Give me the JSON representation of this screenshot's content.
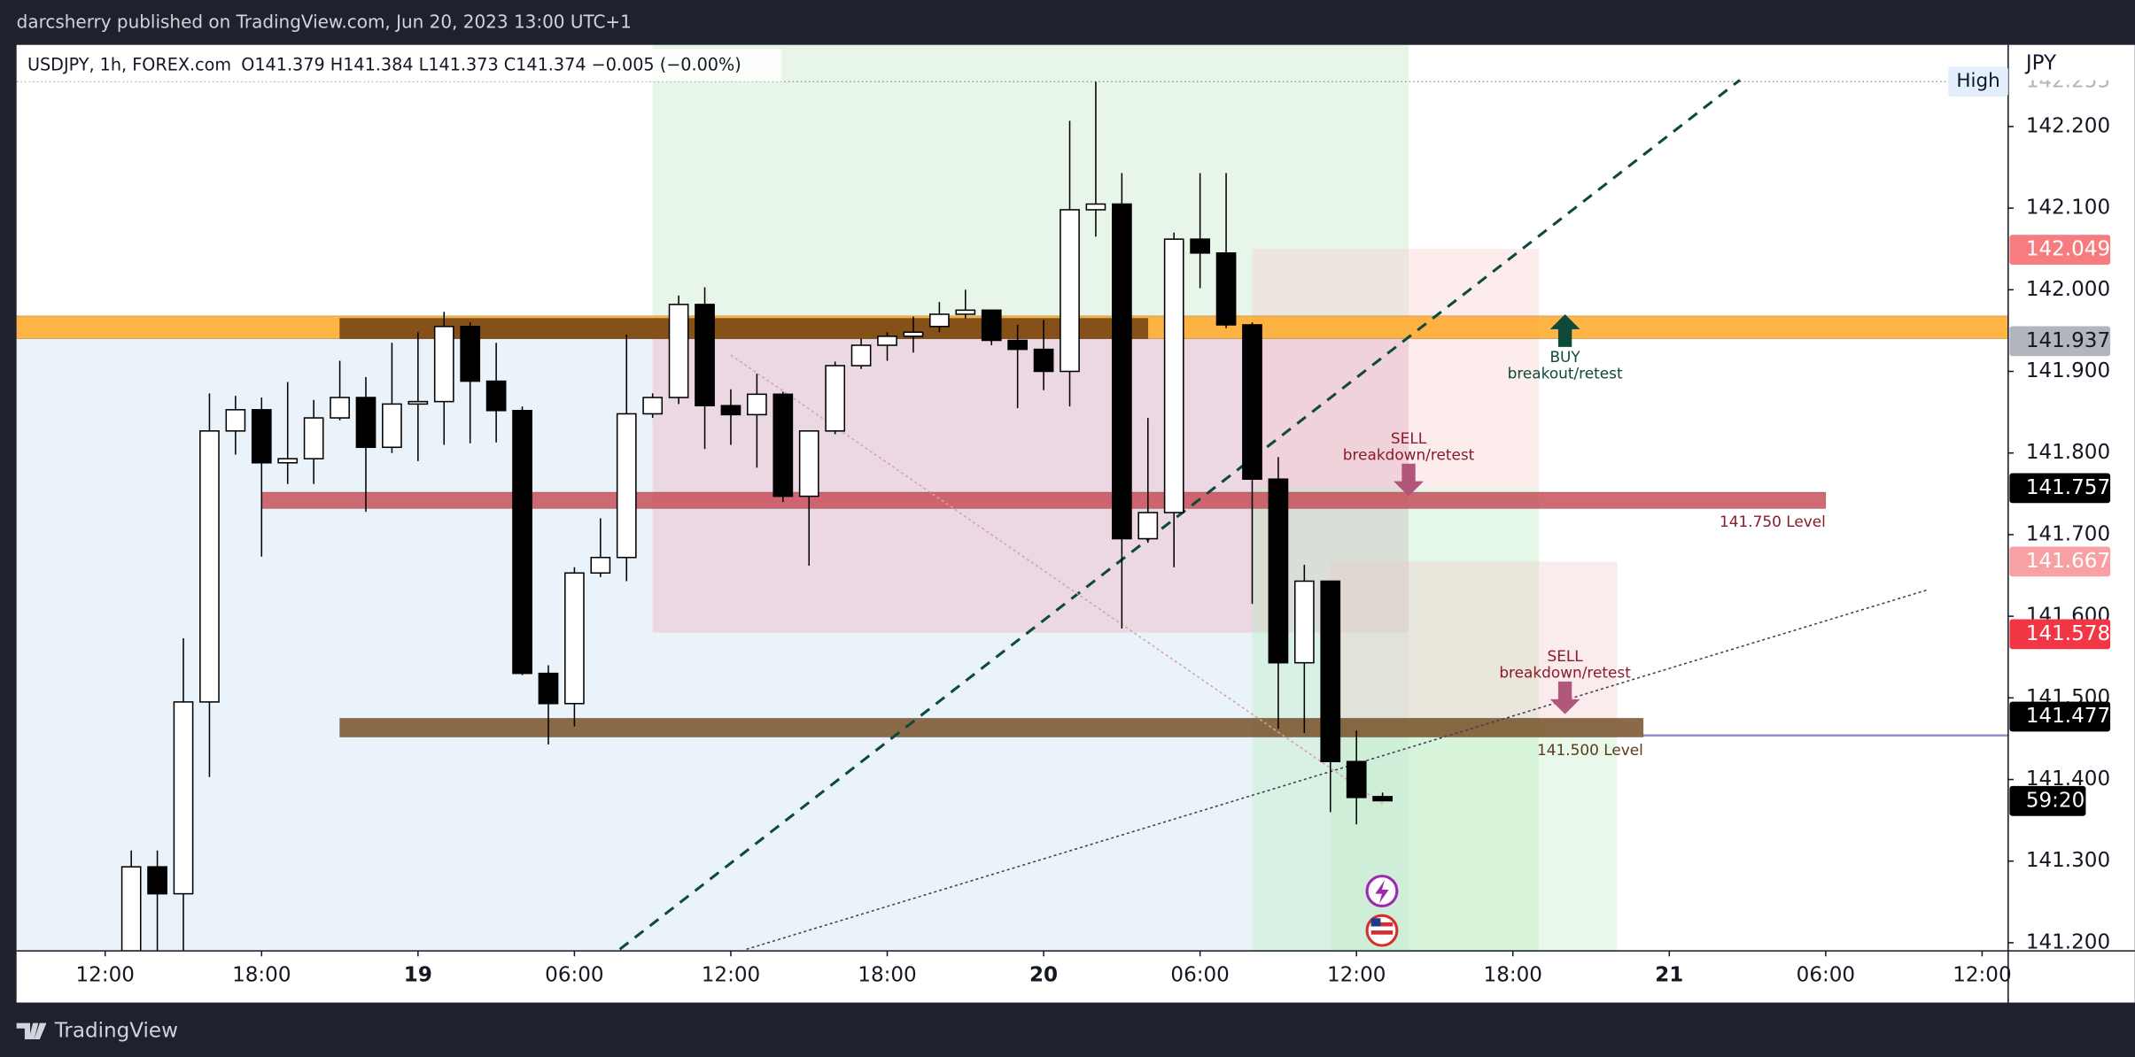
{
  "header": {
    "publisher": "darcsherry published on TradingView.com, Jun 20, 2023 13:00 UTC+1"
  },
  "footer": {
    "brand": "TradingView"
  },
  "chart_data": {
    "type": "candlestick",
    "symbol": "USDJPY, 1h, FOREX.com",
    "ohlc_legend": "O141.379  H141.384  L141.373  C141.374  −0.005 (−0.00%)",
    "currency": "JPY",
    "countdown": "59:20",
    "up_color": "#ffffff",
    "down_color": "#000000",
    "wick_color": "#000000",
    "grid": false,
    "xlim": [
      8.6,
      85
    ],
    "xticks": [
      {
        "value": 12,
        "label": "12:00"
      },
      {
        "value": 18,
        "label": "18:00"
      },
      {
        "value": 24,
        "label": "19"
      },
      {
        "value": 30,
        "label": "06:00"
      },
      {
        "value": 36,
        "label": "12:00"
      },
      {
        "value": 42,
        "label": "18:00"
      },
      {
        "value": 48,
        "label": "20"
      },
      {
        "value": 54,
        "label": "06:00"
      },
      {
        "value": 60,
        "label": "12:00"
      },
      {
        "value": 66,
        "label": "18:00"
      },
      {
        "value": 72,
        "label": "21"
      },
      {
        "value": 78,
        "label": "06:00"
      },
      {
        "value": 84,
        "label": "12:00"
      }
    ],
    "ylim": [
      141.19,
      142.3
    ],
    "yticks": [
      {
        "value": 141.2,
        "label": "141.200"
      },
      {
        "value": 141.3,
        "label": "141.300"
      },
      {
        "value": 141.4,
        "label": "141.400"
      },
      {
        "value": 141.5,
        "label": "141.500"
      },
      {
        "value": 141.6,
        "label": "141.600"
      },
      {
        "value": 141.7,
        "label": "141.700"
      },
      {
        "value": 141.8,
        "label": "141.800"
      },
      {
        "value": 141.9,
        "label": "141.900"
      },
      {
        "value": 142.0,
        "label": "142.000"
      },
      {
        "value": 142.1,
        "label": "142.100"
      },
      {
        "value": 142.2,
        "label": "142.200"
      }
    ],
    "x": [
      13,
      14,
      15,
      16,
      17,
      18,
      19,
      20,
      21,
      22,
      23,
      24,
      25,
      26,
      27,
      28,
      29,
      30,
      31,
      32,
      33,
      34,
      35,
      36,
      37,
      38,
      39,
      40,
      41,
      42,
      43,
      44,
      45,
      46,
      47,
      48,
      49,
      50,
      51,
      52,
      53,
      54,
      55,
      56,
      57,
      58,
      59,
      60,
      61
    ],
    "open": [
      141.19,
      141.293,
      141.26,
      141.495,
      141.827,
      141.853,
      141.788,
      141.793,
      141.843,
      141.868,
      141.807,
      141.86,
      141.863,
      141.955,
      141.888,
      141.852,
      141.53,
      141.493,
      141.653,
      141.672,
      141.848,
      141.868,
      141.982,
      141.858,
      141.847,
      141.872,
      141.747,
      141.827,
      141.907,
      141.932,
      141.943,
      141.955,
      141.97,
      141.975,
      141.938,
      141.927,
      141.9,
      142.098,
      142.105,
      141.695,
      141.727,
      142.062,
      142.045,
      141.957,
      141.768,
      141.543,
      141.643,
      141.422,
      141.379
    ],
    "high": [
      141.313,
      141.313,
      141.573,
      141.873,
      141.87,
      141.868,
      141.887,
      141.865,
      141.913,
      141.893,
      141.935,
      141.948,
      141.973,
      141.96,
      141.935,
      141.857,
      141.54,
      141.66,
      141.72,
      141.945,
      141.873,
      141.993,
      142.003,
      141.878,
      141.897,
      141.875,
      141.827,
      141.912,
      141.94,
      141.948,
      141.967,
      141.985,
      142.0,
      141.975,
      141.957,
      141.963,
      142.207,
      142.255,
      142.143,
      141.843,
      142.07,
      142.143,
      142.143,
      141.96,
      141.795,
      141.663,
      141.643,
      141.46,
      141.384
    ],
    "low": [
      141.19,
      141.19,
      141.19,
      141.403,
      141.798,
      141.673,
      141.762,
      141.762,
      141.84,
      141.728,
      141.8,
      141.79,
      141.81,
      141.812,
      141.813,
      141.528,
      141.443,
      141.465,
      141.648,
      141.643,
      141.843,
      141.86,
      141.805,
      141.81,
      141.782,
      141.74,
      141.662,
      141.823,
      141.903,
      141.913,
      141.923,
      141.948,
      141.965,
      141.932,
      141.855,
      141.877,
      141.857,
      142.065,
      141.585,
      141.69,
      141.66,
      142.002,
      141.953,
      141.615,
      141.462,
      141.457,
      141.36,
      141.345,
      141.373
    ],
    "close": [
      141.293,
      141.26,
      141.495,
      141.827,
      141.853,
      141.788,
      141.793,
      141.843,
      141.868,
      141.807,
      141.86,
      141.863,
      141.955,
      141.888,
      141.852,
      141.53,
      141.493,
      141.653,
      141.672,
      141.848,
      141.868,
      141.982,
      141.858,
      141.847,
      141.872,
      141.747,
      141.827,
      141.907,
      141.932,
      141.943,
      141.948,
      141.97,
      141.975,
      141.938,
      141.927,
      141.9,
      142.098,
      142.105,
      141.695,
      141.727,
      142.062,
      142.045,
      141.957,
      141.768,
      141.543,
      141.643,
      141.422,
      141.378,
      141.374
    ],
    "boxes": [
      {
        "x": [
          8.6,
          62
        ],
        "y": [
          141.19,
          141.94
        ],
        "color": "rgba(190,215,240,0.3)"
      },
      {
        "x": [
          33,
          62
        ],
        "y": [
          141.94,
          142.3
        ],
        "color": "rgba(190,230,195,0.35)"
      },
      {
        "x": [
          33,
          62
        ],
        "y": [
          141.58,
          141.94
        ],
        "color": "rgba(235,185,200,0.45)"
      },
      {
        "x": [
          56,
          67
        ],
        "y": [
          141.757,
          142.05
        ],
        "color": "rgba(245,200,200,0.35)"
      },
      {
        "x": [
          56,
          67
        ],
        "y": [
          141.19,
          141.757
        ],
        "color": "rgba(190,235,195,0.4)"
      },
      {
        "x": [
          59,
          70
        ],
        "y": [
          141.475,
          141.667
        ],
        "color": "rgba(240,200,200,0.35)"
      },
      {
        "x": [
          59,
          70
        ],
        "y": [
          141.19,
          141.475
        ],
        "color": "rgba(190,235,195,0.35)"
      }
    ],
    "zones": [
      {
        "x": [
          8.6,
          85
        ],
        "y": [
          141.94,
          141.968
        ],
        "color": "rgba(255,167,38,0.85)"
      },
      {
        "x": [
          21,
          52
        ],
        "y": [
          141.94,
          141.965
        ],
        "color": "rgba(120,70,20,0.9)"
      },
      {
        "x": [
          18,
          78
        ],
        "y": [
          141.732,
          141.752
        ],
        "color": "rgba(200,80,90,0.85)",
        "label": "141.750 Level",
        "label_color": "#8b1a2b"
      },
      {
        "x": [
          21,
          71
        ],
        "y": [
          141.452,
          141.475
        ],
        "color": "rgba(120,80,40,0.85)",
        "label": "141.500 Level",
        "label_color": "#5a3a1a"
      },
      {
        "x": [
          71,
          85
        ],
        "y": [
          141.453,
          141.455
        ],
        "color": "rgba(150,130,220,0.9)"
      }
    ],
    "trendlines": [
      {
        "x": [
          31.74,
          74.71
        ],
        "y": [
          141.192,
          142.257
        ],
        "color": "#0d4a3a",
        "style": "dashed"
      },
      {
        "x": [
          36.6,
          81.87
        ],
        "y": [
          141.192,
          141.632
        ],
        "color": "#3d3d5c",
        "style": "dotted"
      },
      {
        "x": [
          36,
          61
        ],
        "y": [
          141.92,
          141.37
        ],
        "color": "#d9a0a8",
        "style": "dotted"
      }
    ],
    "annotations": [
      {
        "title": "BUY",
        "text": "breakout/retest",
        "x": 68,
        "y": 141.97,
        "direction": "up",
        "color": "#0d4a3a",
        "arrow_color": "#0d4a3a"
      },
      {
        "title": "SELL",
        "text": "breakdown/retest",
        "x": 62,
        "y": 141.747,
        "direction": "down",
        "color": "#8b1a2b",
        "arrow_color": "#b0577a"
      },
      {
        "title": "SELL",
        "text": "breakdown/retest",
        "x": 68,
        "y": 141.48,
        "direction": "down",
        "color": "#8b1a2b",
        "arrow_color": "#b0577a"
      }
    ],
    "high_marker": {
      "label": "High",
      "value": 142.255
    },
    "price_labels": [
      {
        "value": 142.049,
        "color": "#f77c80",
        "text_color": "#ffffff"
      },
      {
        "value": 141.937,
        "color": "#b2b5be",
        "text_color": "#131722"
      },
      {
        "value": 141.757,
        "color": "#000000",
        "text_color": "#ffffff"
      },
      {
        "value": 141.667,
        "color": "#f7a1a4",
        "text_color": "#ffffff"
      },
      {
        "value": 141.578,
        "color": "#f23645",
        "text_color": "#ffffff"
      },
      {
        "value": 141.477,
        "color": "#000000",
        "text_color": "#ffffff"
      }
    ]
  }
}
